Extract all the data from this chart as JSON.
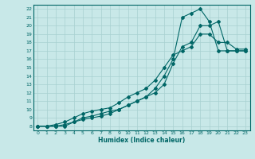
{
  "xlabel": "Humidex (Indice chaleur)",
  "bg_color": "#c8e8e8",
  "grid_color": "#a8d0d0",
  "line_color": "#006666",
  "xlim": [
    -0.5,
    23.5
  ],
  "ylim": [
    7.5,
    22.5
  ],
  "xticks": [
    0,
    1,
    2,
    3,
    4,
    5,
    6,
    7,
    8,
    9,
    10,
    11,
    12,
    13,
    14,
    15,
    16,
    17,
    18,
    19,
    20,
    21,
    22,
    23
  ],
  "yticks": [
    8,
    9,
    10,
    11,
    12,
    13,
    14,
    15,
    16,
    17,
    18,
    19,
    20,
    21,
    22
  ],
  "line1_x": [
    0,
    1,
    2,
    3,
    4,
    5,
    6,
    7,
    8,
    9,
    10,
    11,
    12,
    13,
    14,
    15,
    16,
    17,
    18,
    19,
    20,
    21,
    22,
    23
  ],
  "line1_y": [
    8,
    8,
    8,
    8,
    8.5,
    9,
    9.2,
    9.5,
    9.8,
    10,
    10.5,
    11,
    11.5,
    12,
    13,
    15.5,
    17.5,
    18,
    20,
    20,
    20.5,
    17,
    17,
    17
  ],
  "line2_x": [
    0,
    1,
    2,
    3,
    4,
    5,
    6,
    7,
    8,
    9,
    10,
    11,
    12,
    13,
    14,
    15,
    16,
    17,
    18,
    19,
    20,
    21,
    22,
    23
  ],
  "line2_y": [
    8,
    8,
    8,
    8.2,
    8.5,
    8.8,
    9,
    9.2,
    9.5,
    10,
    10.5,
    11,
    11.5,
    12.5,
    14,
    16,
    21,
    21.5,
    22,
    20.5,
    17,
    17,
    17,
    17
  ],
  "line3_x": [
    0,
    1,
    2,
    3,
    4,
    5,
    6,
    7,
    8,
    9,
    10,
    11,
    12,
    13,
    14,
    15,
    16,
    17,
    18,
    19,
    20,
    21,
    22,
    23
  ],
  "line3_y": [
    8,
    8,
    8.2,
    8.5,
    9,
    9.5,
    9.8,
    10,
    10.2,
    10.8,
    11.5,
    12,
    12.5,
    13.5,
    15,
    16.5,
    17,
    17.5,
    19,
    19,
    18,
    18,
    17.2,
    17.2
  ]
}
